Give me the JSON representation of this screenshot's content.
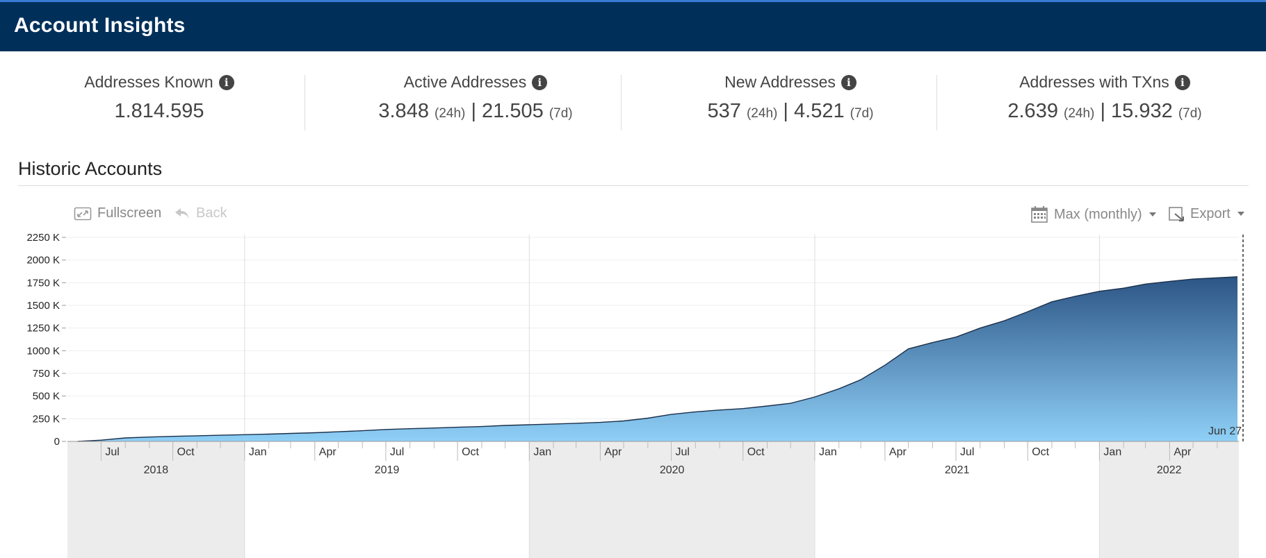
{
  "header": {
    "title": "Account Insights"
  },
  "stats": [
    {
      "label": "Addresses Known",
      "value": "1.814.595"
    },
    {
      "label": "Active Addresses",
      "v1": "3.848",
      "u1": "(24h)",
      "sep": "|",
      "v2": "21.505",
      "u2": "(7d)"
    },
    {
      "label": "New Addresses",
      "v1": "537",
      "u1": "(24h)",
      "sep": "|",
      "v2": "4.521",
      "u2": "(7d)"
    },
    {
      "label": "Addresses with TXns",
      "v1": "2.639",
      "u1": "(24h)",
      "sep": "|",
      "v2": "15.932",
      "u2": "(7d)"
    }
  ],
  "section": {
    "title": "Historic Accounts"
  },
  "toolbar": {
    "fullscreen": "Fullscreen",
    "back": "Back",
    "range": "Max (monthly)",
    "export": "Export"
  },
  "icons": {
    "info": "info-icon",
    "fullscreen": "fullscreen-icon",
    "back": "back-arrow-icon",
    "calendar": "calendar-icon",
    "export": "export-icon"
  },
  "colors": {
    "header_bg": "#00305a",
    "area_top": "#2c5585",
    "area_bottom": "#8fd0f7",
    "line": "#1a2f4a"
  },
  "chart_data": {
    "type": "area",
    "title": "",
    "ylabel": "",
    "xlabel": "",
    "ylim": [
      0,
      2250
    ],
    "yticks": [
      "0",
      "250 K",
      "500 K",
      "750 K",
      "1000 K",
      "1250 K",
      "1500 K",
      "1750 K",
      "2000 K",
      "2250 K"
    ],
    "grid": true,
    "x_start": "2018-06",
    "x_end": "2022-06-27",
    "month_ticks": [
      {
        "label": "Jul",
        "date": "2018-07"
      },
      {
        "label": "Oct",
        "date": "2018-10"
      },
      {
        "label": "Jan",
        "date": "2019-01"
      },
      {
        "label": "Apr",
        "date": "2019-04"
      },
      {
        "label": "Jul",
        "date": "2019-07"
      },
      {
        "label": "Oct",
        "date": "2019-10"
      },
      {
        "label": "Jan",
        "date": "2020-01"
      },
      {
        "label": "Apr",
        "date": "2020-04"
      },
      {
        "label": "Jul",
        "date": "2020-07"
      },
      {
        "label": "Oct",
        "date": "2020-10"
      },
      {
        "label": "Jan",
        "date": "2021-01"
      },
      {
        "label": "Apr",
        "date": "2021-04"
      },
      {
        "label": "Jul",
        "date": "2021-07"
      },
      {
        "label": "Oct",
        "date": "2021-10"
      },
      {
        "label": "Jan",
        "date": "2022-01"
      },
      {
        "label": "Apr",
        "date": "2022-04"
      }
    ],
    "year_labels": [
      "2018",
      "2019",
      "2020",
      "2021",
      "2022"
    ],
    "end_label": "Jun 27",
    "series": [
      {
        "values_unit": "K",
        "points": [
          [
            "2018-06-01",
            0
          ],
          [
            "2018-07-01",
            14
          ],
          [
            "2018-08-01",
            38
          ],
          [
            "2018-09-01",
            48
          ],
          [
            "2018-10-01",
            56
          ],
          [
            "2018-11-01",
            62
          ],
          [
            "2018-12-01",
            68
          ],
          [
            "2019-01-01",
            74
          ],
          [
            "2019-02-01",
            80
          ],
          [
            "2019-03-01",
            88
          ],
          [
            "2019-04-01",
            96
          ],
          [
            "2019-05-01",
            106
          ],
          [
            "2019-06-01",
            118
          ],
          [
            "2019-07-01",
            132
          ],
          [
            "2019-08-01",
            140
          ],
          [
            "2019-09-01",
            148
          ],
          [
            "2019-10-01",
            156
          ],
          [
            "2019-11-01",
            164
          ],
          [
            "2019-12-01",
            176
          ],
          [
            "2020-01-01",
            184
          ],
          [
            "2020-02-01",
            192
          ],
          [
            "2020-03-01",
            200
          ],
          [
            "2020-04-01",
            210
          ],
          [
            "2020-05-01",
            226
          ],
          [
            "2020-06-01",
            256
          ],
          [
            "2020-07-01",
            298
          ],
          [
            "2020-08-01",
            326
          ],
          [
            "2020-09-01",
            346
          ],
          [
            "2020-10-01",
            362
          ],
          [
            "2020-11-01",
            390
          ],
          [
            "2020-12-01",
            420
          ],
          [
            "2021-01-01",
            490
          ],
          [
            "2021-02-01",
            580
          ],
          [
            "2021-03-01",
            680
          ],
          [
            "2021-04-01",
            840
          ],
          [
            "2021-05-01",
            1020
          ],
          [
            "2021-06-01",
            1090
          ],
          [
            "2021-07-01",
            1150
          ],
          [
            "2021-08-01",
            1250
          ],
          [
            "2021-09-01",
            1330
          ],
          [
            "2021-10-01",
            1430
          ],
          [
            "2021-11-01",
            1540
          ],
          [
            "2021-12-01",
            1600
          ],
          [
            "2022-01-01",
            1655
          ],
          [
            "2022-02-01",
            1690
          ],
          [
            "2022-03-01",
            1735
          ],
          [
            "2022-04-01",
            1765
          ],
          [
            "2022-05-01",
            1790
          ],
          [
            "2022-06-27",
            1815
          ]
        ]
      }
    ]
  }
}
